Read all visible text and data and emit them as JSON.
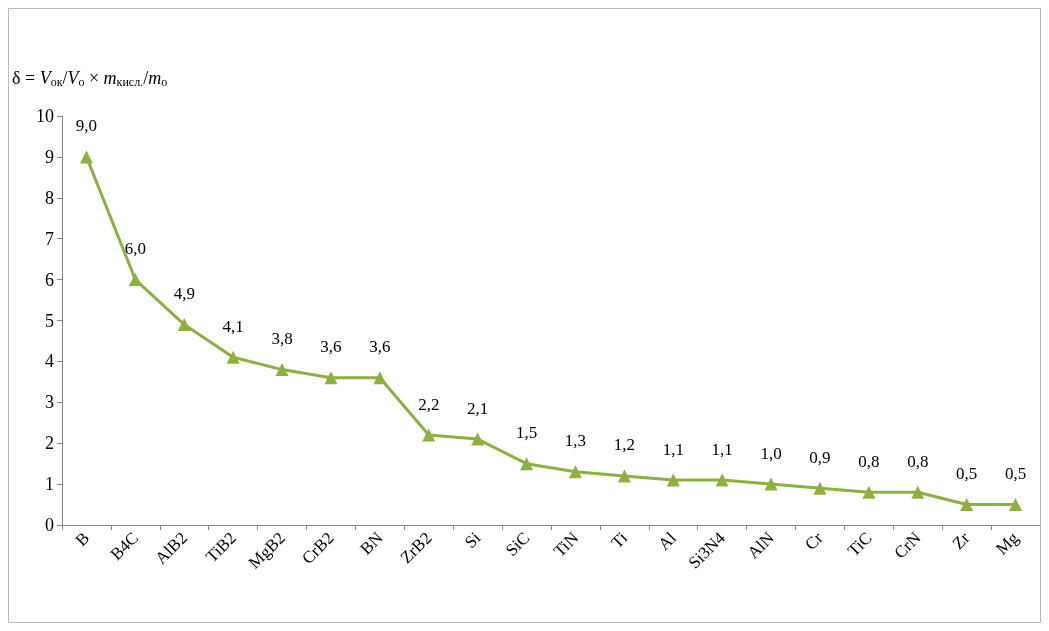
{
  "chart_data": {
    "type": "line",
    "ylabel": "δ = V$_{ок}$/V$_{о}$ × m$_{кисл.}$/m$_{о}$",
    "categories": [
      "B",
      "B4C",
      "AlB2",
      "TiB2",
      "MgB2",
      "CrB2",
      "BN",
      "ZrB2",
      "Si",
      "SiC",
      "TiN",
      "Ti",
      "Al",
      "Si3N4",
      "AlN",
      "Cr",
      "TiC",
      "CrN",
      "Zr",
      "Mg"
    ],
    "series": [
      {
        "color": "#8db043",
        "values": [
          9.0,
          6.0,
          4.9,
          4.1,
          3.8,
          3.6,
          3.6,
          2.2,
          2.1,
          1.5,
          1.3,
          1.2,
          1.1,
          1.1,
          1.0,
          0.9,
          0.8,
          0.8,
          0.5,
          0.5
        ],
        "value_labels": [
          "9,0",
          "6,0",
          "4,9",
          "4,1",
          "3,8",
          "3,6",
          "3,6",
          "2,2",
          "2,1",
          "1,5",
          "1,3",
          "1,2",
          "1,1",
          "1,1",
          "1,0",
          "0,9",
          "0,8",
          "0,8",
          "0,5",
          "0,5"
        ]
      }
    ],
    "ylim": [
      0,
      10
    ],
    "yticks": [
      0,
      1,
      2,
      3,
      4,
      5,
      6,
      7,
      8,
      9,
      10
    ],
    "grid": false,
    "marker": "triangle",
    "line_style": "solid"
  }
}
